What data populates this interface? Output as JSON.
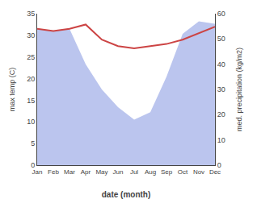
{
  "chart_data": {
    "type": "line",
    "xlabel": "date (month)",
    "ylabel": "max temp (C)",
    "y2label": "med. precipitation (kg/m2)",
    "categories": [
      "Jan",
      "Feb",
      "Mar",
      "Apr",
      "May",
      "Jun",
      "Jul",
      "Aug",
      "Sep",
      "Oct",
      "Nov",
      "Dec"
    ],
    "series": [
      {
        "type": "area",
        "axis": "y2",
        "color": "#bbc5ee",
        "values": [
          54.0,
          53.0,
          54.0,
          40.0,
          30.0,
          23.0,
          18.0,
          21.0,
          35.0,
          52.0,
          57.0,
          56.0
        ]
      },
      {
        "type": "line",
        "color": "#cc4444",
        "values": [
          31.5,
          31.0,
          31.5,
          32.5,
          29.0,
          27.5,
          27.0,
          27.5,
          28.0,
          29.0,
          30.5,
          32.0
        ]
      }
    ],
    "ylim": [
      0,
      35
    ],
    "yticks": [
      0,
      5,
      10,
      15,
      20,
      25,
      30,
      35
    ],
    "y2lim": [
      0,
      60
    ],
    "y2ticks": [
      0,
      10,
      20,
      30,
      40,
      50,
      60
    ],
    "grid": false
  }
}
